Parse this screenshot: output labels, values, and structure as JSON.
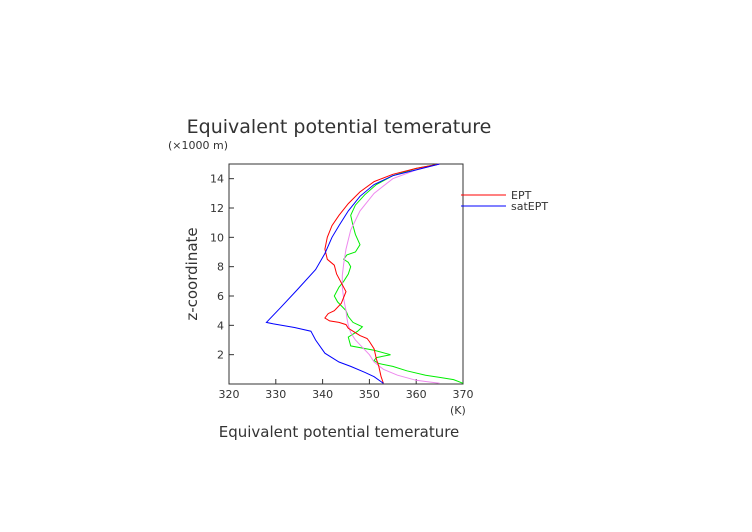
{
  "chart_data": {
    "type": "line",
    "title": "Equivalent potential temerature",
    "xlabel": "Equivalent potential temerature",
    "xunit": "(K)",
    "ylabel": "z-coordinate",
    "yunit": "(×1000 m)",
    "xlim": [
      320,
      370
    ],
    "ylim": [
      0,
      15
    ],
    "xticks": [
      "320",
      "330",
      "340",
      "350",
      "360",
      "370"
    ],
    "yticks": [
      "2",
      "4",
      "6",
      "8",
      "10",
      "12",
      "14"
    ],
    "grid": false,
    "legend_placement": "right",
    "series": [
      {
        "name": "EPT",
        "color": "#ff0000",
        "x": [
          353,
          352.5,
          352,
          351.5,
          351,
          350,
          349.5,
          348,
          346.5,
          345.5,
          345,
          343.5,
          341.5,
          340.5,
          341.2,
          342.5,
          344,
          345,
          344,
          343,
          342.5,
          341,
          340.5,
          341,
          342,
          343.5,
          345.5,
          348,
          351,
          355,
          360,
          365
        ],
        "y": [
          0.05,
          0.5,
          1.2,
          1.7,
          2.4,
          2.9,
          3.1,
          3.3,
          3.6,
          3.8,
          4.05,
          4.2,
          4.3,
          4.5,
          4.8,
          5.0,
          5.5,
          6.3,
          6.9,
          7.5,
          8.1,
          8.5,
          9.2,
          10,
          10.8,
          11.5,
          12.3,
          13.1,
          13.8,
          14.3,
          14.7,
          15.0
        ]
      },
      {
        "name": "satEPT",
        "color": "#0000ff",
        "x": [
          353,
          351,
          349,
          346,
          343.5,
          340.5,
          338.5,
          337.5,
          334,
          329.5,
          328,
          331,
          334.5,
          338.5,
          340.5,
          342,
          343.5,
          345.5,
          348,
          351,
          355,
          360,
          365
        ],
        "y": [
          0.05,
          0.5,
          0.8,
          1.2,
          1.5,
          2.1,
          3.0,
          3.6,
          3.85,
          4.1,
          4.2,
          5.2,
          6.4,
          7.8,
          8.9,
          10,
          10.8,
          11.8,
          12.8,
          13.6,
          14.2,
          14.6,
          15.0
        ]
      },
      {
        "name": "",
        "color": "#00ee00",
        "x": [
          370,
          368,
          365,
          362,
          358,
          355,
          352,
          351,
          351.5,
          354.5,
          351,
          346,
          345.5,
          347.5,
          348.5,
          346.5,
          345.5,
          345,
          343.2,
          342.5,
          343.5,
          344.5,
          345.5,
          346,
          345.5,
          344.5,
          345.2,
          347,
          348,
          347,
          346.5,
          346,
          347,
          349,
          351.5,
          355,
          360,
          365
        ],
        "y": [
          0.05,
          0.3,
          0.45,
          0.6,
          0.9,
          1.2,
          1.4,
          1.6,
          1.8,
          2.0,
          2.3,
          2.6,
          3.2,
          3.6,
          3.9,
          4.2,
          4.6,
          5.0,
          5.6,
          6.0,
          6.6,
          7.0,
          7.5,
          8.0,
          8.3,
          8.5,
          8.8,
          9.0,
          9.5,
          10.2,
          10.8,
          11.5,
          12.2,
          12.9,
          13.6,
          14.2,
          14.7,
          15.0
        ]
      },
      {
        "name": "",
        "color": "#ee88ee",
        "x": [
          365,
          360,
          356,
          353,
          351,
          350,
          348.5,
          347,
          346,
          345.5,
          345.2,
          345,
          344.5,
          344.2,
          344.2,
          344.5,
          345,
          346,
          348,
          351,
          355,
          360,
          365
        ],
        "y": [
          0.05,
          0.25,
          0.6,
          1.0,
          1.5,
          2.0,
          2.5,
          3.0,
          3.5,
          4.0,
          4.5,
          5.0,
          5.8,
          6.6,
          7.4,
          8.2,
          9.2,
          10.5,
          11.8,
          13.0,
          14.0,
          14.6,
          15.0
        ]
      }
    ]
  }
}
